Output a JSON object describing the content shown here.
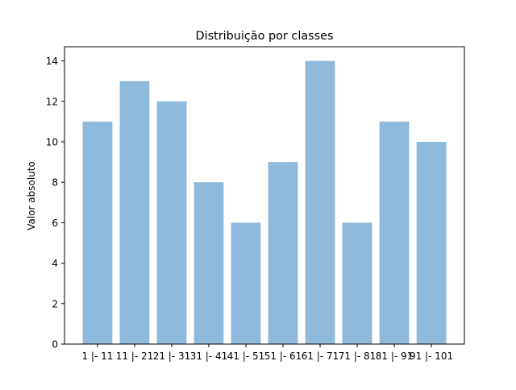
{
  "chart_data": {
    "type": "bar",
    "title": "Distribuição por classes",
    "xlabel": "",
    "ylabel": "Valor absoluto",
    "categories": [
      "1 |- 11",
      "11 |- 21",
      "21 |- 31",
      "31 |- 41",
      "41 |- 51",
      "51 |- 61",
      "61 |- 71",
      "71 |- 81",
      "81 |- 91",
      "91 |- 101"
    ],
    "values": [
      11,
      13,
      12,
      8,
      6,
      9,
      14,
      6,
      11,
      10
    ],
    "ylim": [
      0,
      14.7
    ],
    "yticks": [
      "0",
      "2",
      "4",
      "6",
      "8",
      "10",
      "12",
      "14"
    ],
    "bar_color": "#8fbadb",
    "grid": false,
    "legend": "none"
  }
}
